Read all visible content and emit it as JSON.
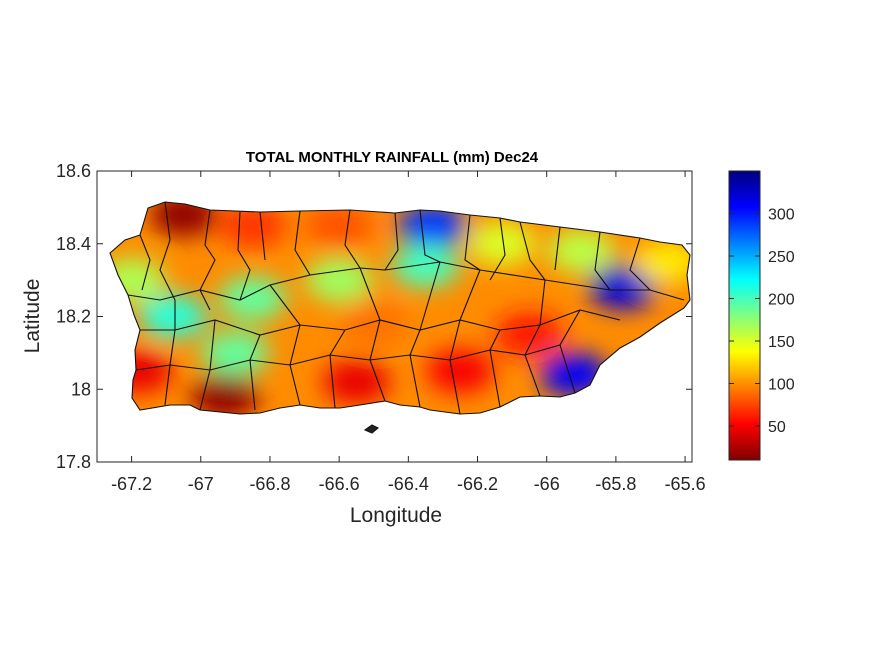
{
  "chart_data": {
    "type": "heatmap",
    "title": "TOTAL MONTHLY RAINFALL (mm) Dec24",
    "xlabel": "Longitude",
    "ylabel": "Latitude",
    "xlim": [
      -67.3,
      -65.58
    ],
    "ylim": [
      17.8,
      18.6
    ],
    "xticks": [
      -67.2,
      -67,
      -66.8,
      -66.6,
      -66.4,
      -66.2,
      -66,
      -65.8,
      -65.6
    ],
    "xtick_labels": [
      "-67.2",
      "-67",
      "-66.8",
      "-66.6",
      "-66.4",
      "-66.2",
      "-66",
      "-65.8",
      "-65.6"
    ],
    "yticks": [
      17.8,
      18,
      18.2,
      18.4,
      18.6
    ],
    "ytick_labels": [
      "17.8",
      "18",
      "18.2",
      "18.4",
      "18.6"
    ],
    "colorbar": {
      "range": [
        10,
        350
      ],
      "ticks": [
        50,
        100,
        150,
        200,
        250,
        300
      ],
      "tick_labels": [
        "50",
        "100",
        "150",
        "200",
        "250",
        "300"
      ],
      "colormap": "jet",
      "colors": [
        "#800000",
        "#ff0000",
        "#ff8000",
        "#ffff00",
        "#80ff80",
        "#00ffff",
        "#0080ff",
        "#0000ff",
        "#000080"
      ]
    },
    "hotspots": [
      {
        "lon": -67.05,
        "lat": 18.48,
        "value": 15
      },
      {
        "lon": -66.93,
        "lat": 17.98,
        "value": 15
      },
      {
        "lon": -67.18,
        "lat": 18.05,
        "value": 45
      },
      {
        "lon": -66.55,
        "lat": 18.02,
        "value": 45
      },
      {
        "lon": -66.25,
        "lat": 18.05,
        "value": 50
      },
      {
        "lon": -66.05,
        "lat": 18.15,
        "value": 60
      },
      {
        "lon": -66.6,
        "lat": 18.45,
        "value": 80
      },
      {
        "lon": -66.85,
        "lat": 18.45,
        "value": 70
      },
      {
        "lon": -67.2,
        "lat": 18.3,
        "value": 165
      },
      {
        "lon": -67.08,
        "lat": 18.2,
        "value": 210
      },
      {
        "lon": -66.85,
        "lat": 18.25,
        "value": 190
      },
      {
        "lon": -66.9,
        "lat": 18.1,
        "value": 190
      },
      {
        "lon": -66.6,
        "lat": 18.3,
        "value": 170
      },
      {
        "lon": -66.33,
        "lat": 18.45,
        "value": 290
      },
      {
        "lon": -66.35,
        "lat": 18.34,
        "value": 200
      },
      {
        "lon": -66.13,
        "lat": 18.4,
        "value": 150
      },
      {
        "lon": -65.9,
        "lat": 18.38,
        "value": 160
      },
      {
        "lon": -65.78,
        "lat": 18.28,
        "value": 320
      },
      {
        "lon": -65.92,
        "lat": 18.04,
        "value": 310
      },
      {
        "lon": -65.65,
        "lat": 18.35,
        "value": 130
      },
      {
        "lon": -66.5,
        "lat": 18.18,
        "value": 90
      }
    ]
  }
}
